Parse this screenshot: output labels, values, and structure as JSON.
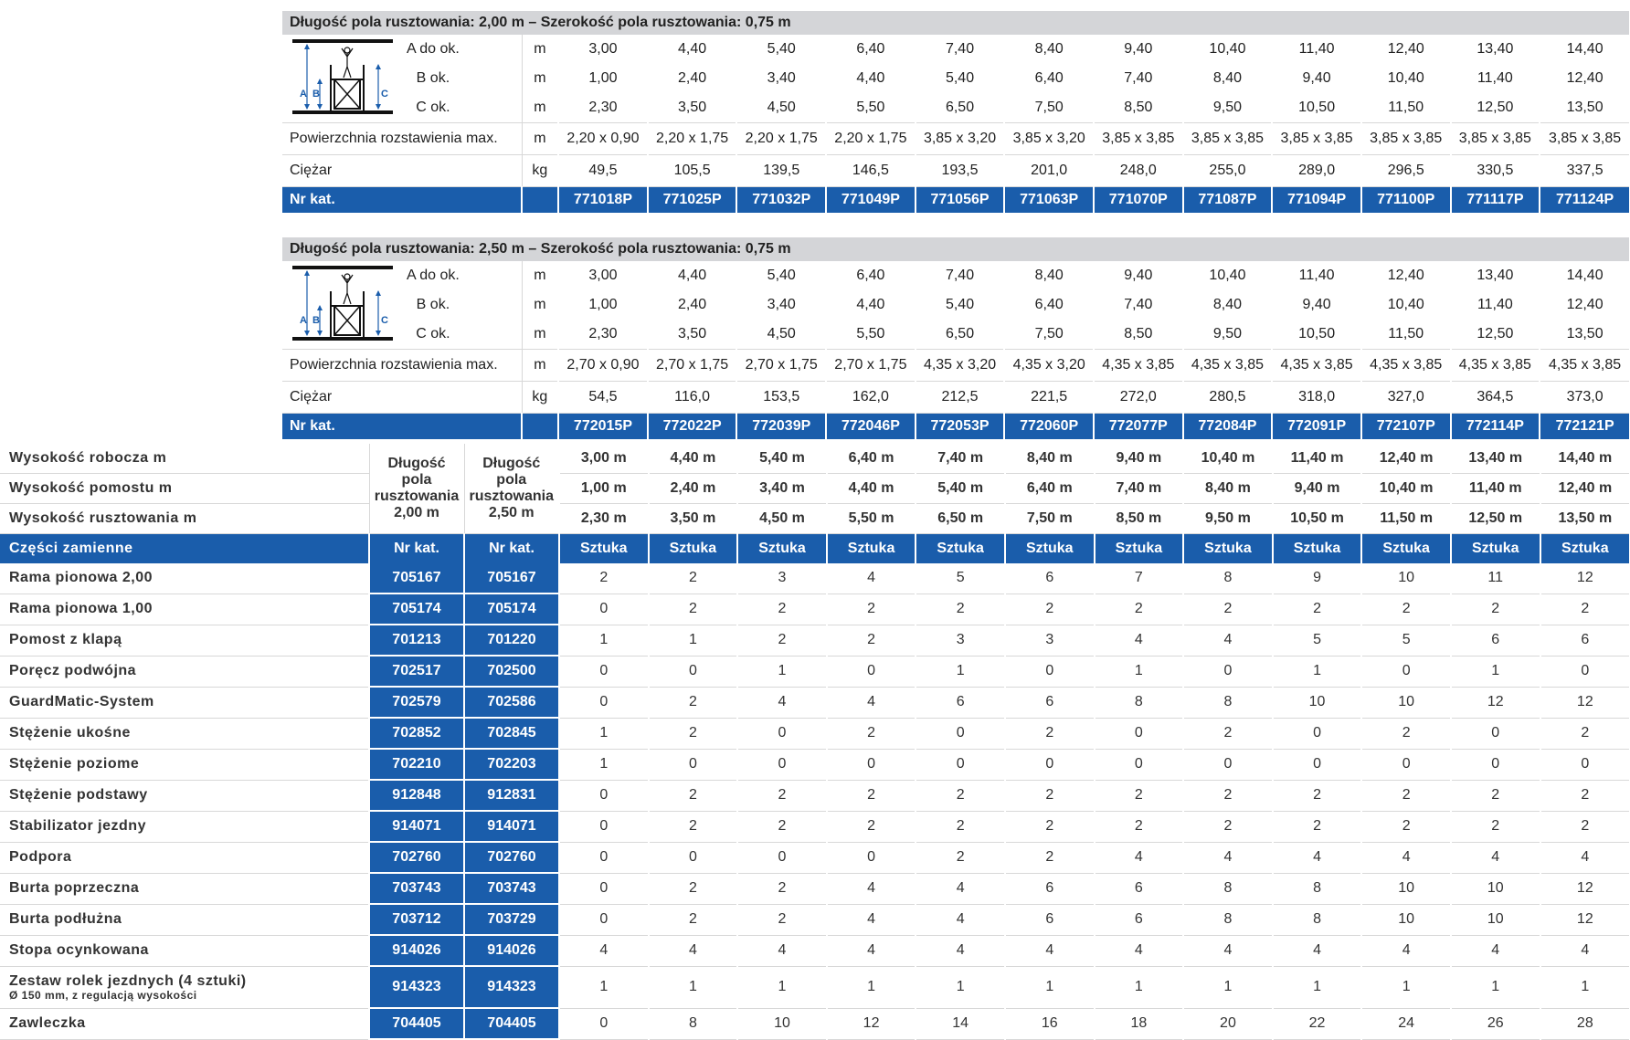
{
  "table1": {
    "header": "Długość pola rusztowania: 2,00 m – Szerokość pola rusztowania: 0,75 m",
    "dim_labels": [
      "A do ok.",
      "B ok.",
      "C ok."
    ],
    "unit_m": "m",
    "A": [
      "3,00",
      "4,40",
      "5,40",
      "6,40",
      "7,40",
      "8,40",
      "9,40",
      "10,40",
      "11,40",
      "12,40",
      "13,40",
      "14,40"
    ],
    "B": [
      "1,00",
      "2,40",
      "3,40",
      "4,40",
      "5,40",
      "6,40",
      "7,40",
      "8,40",
      "9,40",
      "10,40",
      "11,40",
      "12,40"
    ],
    "C": [
      "2,30",
      "3,50",
      "4,50",
      "5,50",
      "6,50",
      "7,50",
      "8,50",
      "9,50",
      "10,50",
      "11,50",
      "12,50",
      "13,50"
    ],
    "area_label": "Powierzchnia rozstawienia max.",
    "area": [
      "2,20 x 0,90",
      "2,20 x 1,75",
      "2,20 x 1,75",
      "2,20 x 1,75",
      "3,85 x 3,20",
      "3,85 x 3,20",
      "3,85 x 3,85",
      "3,85 x 3,85",
      "3,85 x 3,85",
      "3,85 x 3,85",
      "3,85 x 3,85",
      "3,85 x 3,85"
    ],
    "weight_label": "Ciężar",
    "weight_unit": "kg",
    "weight": [
      "49,5",
      "105,5",
      "139,5",
      "146,5",
      "193,5",
      "201,0",
      "248,0",
      "255,0",
      "289,0",
      "296,5",
      "330,5",
      "337,5"
    ],
    "cat_label": "Nr kat.",
    "cat": [
      "771018P",
      "771025P",
      "771032P",
      "771049P",
      "771056P",
      "771063P",
      "771070P",
      "771087P",
      "771094P",
      "771100P",
      "771117P",
      "771124P"
    ]
  },
  "table2": {
    "header": "Długość pola rusztowania: 2,50 m – Szerokość pola rusztowania: 0,75 m",
    "dim_labels": [
      "A do ok.",
      "B ok.",
      "C ok."
    ],
    "unit_m": "m",
    "A": [
      "3,00",
      "4,40",
      "5,40",
      "6,40",
      "7,40",
      "8,40",
      "9,40",
      "10,40",
      "11,40",
      "12,40",
      "13,40",
      "14,40"
    ],
    "B": [
      "1,00",
      "2,40",
      "3,40",
      "4,40",
      "5,40",
      "6,40",
      "7,40",
      "8,40",
      "9,40",
      "10,40",
      "11,40",
      "12,40"
    ],
    "C": [
      "2,30",
      "3,50",
      "4,50",
      "5,50",
      "6,50",
      "7,50",
      "8,50",
      "9,50",
      "10,50",
      "11,50",
      "12,50",
      "13,50"
    ],
    "area_label": "Powierzchnia rozstawienia max.",
    "area": [
      "2,70 x 0,90",
      "2,70 x 1,75",
      "2,70 x 1,75",
      "2,70 x 1,75",
      "4,35 x 3,20",
      "4,35 x 3,20",
      "4,35 x 3,85",
      "4,35 x 3,85",
      "4,35 x 3,85",
      "4,35 x 3,85",
      "4,35 x 3,85",
      "4,35 x 3,85"
    ],
    "weight_label": "Ciężar",
    "weight_unit": "kg",
    "weight": [
      "54,5",
      "116,0",
      "153,5",
      "162,0",
      "212,5",
      "221,5",
      "272,0",
      "280,5",
      "318,0",
      "327,0",
      "364,5",
      "373,0"
    ],
    "cat_label": "Nr kat.",
    "cat": [
      "772015P",
      "772022P",
      "772039P",
      "772046P",
      "772053P",
      "772060P",
      "772077P",
      "772084P",
      "772091P",
      "772107P",
      "772114P",
      "772121P"
    ]
  },
  "diagram_labels": {
    "a": "A",
    "b": "B",
    "c": "C"
  },
  "parts": {
    "height_rows": [
      {
        "label": "Wysokość robocza m",
        "values": [
          "3,00 m",
          "4,40 m",
          "5,40 m",
          "6,40 m",
          "7,40 m",
          "8,40 m",
          "9,40 m",
          "10,40 m",
          "11,40 m",
          "12,40 m",
          "13,40 m",
          "14,40 m"
        ]
      },
      {
        "label": "Wysokość pomostu m",
        "values": [
          "1,00 m",
          "2,40 m",
          "3,40 m",
          "4,40 m",
          "5,40 m",
          "6,40 m",
          "7,40 m",
          "8,40 m",
          "9,40 m",
          "10,40 m",
          "11,40 m",
          "12,40 m"
        ]
      },
      {
        "label": "Wysokość rusztowania m",
        "values": [
          "2,30 m",
          "3,50 m",
          "4,50 m",
          "5,50 m",
          "6,50 m",
          "7,50 m",
          "8,50 m",
          "9,50 m",
          "10,50 m",
          "11,50 m",
          "12,50 m",
          "13,50 m"
        ]
      }
    ],
    "dl_head_1": [
      "Długość",
      "pola",
      "rusztowania",
      "2,00 m"
    ],
    "dl_head_2": [
      "Długość",
      "pola",
      "rusztowania",
      "2,50 m"
    ],
    "head_label": "Części zamienne",
    "head_cat1": "Nr kat.",
    "head_cat2": "Nr kat.",
    "head_unit": "Sztuka",
    "rows": [
      {
        "name": "Rama pionowa 2,00",
        "c1": "705167",
        "c2": "705167",
        "q": [
          "2",
          "2",
          "3",
          "4",
          "5",
          "6",
          "7",
          "8",
          "9",
          "10",
          "11",
          "12"
        ]
      },
      {
        "name": "Rama pionowa 1,00",
        "c1": "705174",
        "c2": "705174",
        "q": [
          "0",
          "2",
          "2",
          "2",
          "2",
          "2",
          "2",
          "2",
          "2",
          "2",
          "2",
          "2"
        ]
      },
      {
        "name": "Pomost z klapą",
        "c1": "701213",
        "c2": "701220",
        "q": [
          "1",
          "1",
          "2",
          "2",
          "3",
          "3",
          "4",
          "4",
          "5",
          "5",
          "6",
          "6"
        ]
      },
      {
        "name": "Poręcz podwójna",
        "c1": "702517",
        "c2": "702500",
        "q": [
          "0",
          "0",
          "1",
          "0",
          "1",
          "0",
          "1",
          "0",
          "1",
          "0",
          "1",
          "0"
        ]
      },
      {
        "name": "GuardMatic-System",
        "c1": "702579",
        "c2": "702586",
        "q": [
          "0",
          "2",
          "4",
          "4",
          "6",
          "6",
          "8",
          "8",
          "10",
          "10",
          "12",
          "12"
        ]
      },
      {
        "name": "Stężenie ukośne",
        "c1": "702852",
        "c2": "702845",
        "q": [
          "1",
          "2",
          "0",
          "2",
          "0",
          "2",
          "0",
          "2",
          "0",
          "2",
          "0",
          "2"
        ]
      },
      {
        "name": "Stężenie poziome",
        "c1": "702210",
        "c2": "702203",
        "q": [
          "1",
          "0",
          "0",
          "0",
          "0",
          "0",
          "0",
          "0",
          "0",
          "0",
          "0",
          "0"
        ]
      },
      {
        "name": "Stężenie podstawy",
        "c1": "912848",
        "c2": "912831",
        "q": [
          "0",
          "2",
          "2",
          "2",
          "2",
          "2",
          "2",
          "2",
          "2",
          "2",
          "2",
          "2"
        ]
      },
      {
        "name": "Stabilizator jezdny",
        "c1": "914071",
        "c2": "914071",
        "q": [
          "0",
          "2",
          "2",
          "2",
          "2",
          "2",
          "2",
          "2",
          "2",
          "2",
          "2",
          "2"
        ]
      },
      {
        "name": "Podpora",
        "c1": "702760",
        "c2": "702760",
        "q": [
          "0",
          "0",
          "0",
          "0",
          "2",
          "2",
          "4",
          "4",
          "4",
          "4",
          "4",
          "4"
        ]
      },
      {
        "name": "Burta poprzeczna",
        "c1": "703743",
        "c2": "703743",
        "q": [
          "0",
          "2",
          "2",
          "4",
          "4",
          "6",
          "6",
          "8",
          "8",
          "10",
          "10",
          "12"
        ]
      },
      {
        "name": "Burta podłużna",
        "c1": "703712",
        "c2": "703729",
        "q": [
          "0",
          "2",
          "2",
          "4",
          "4",
          "6",
          "6",
          "8",
          "8",
          "10",
          "10",
          "12"
        ]
      },
      {
        "name": "Stopa ocynkowana",
        "c1": "914026",
        "c2": "914026",
        "q": [
          "4",
          "4",
          "4",
          "4",
          "4",
          "4",
          "4",
          "4",
          "4",
          "4",
          "4",
          "4"
        ]
      },
      {
        "name": "Zestaw rolek jezdnych (4 sztuki)",
        "sub": "Ø 150 mm, z regulacją wysokości",
        "c1": "914323",
        "c2": "914323",
        "q": [
          "1",
          "1",
          "1",
          "1",
          "1",
          "1",
          "1",
          "1",
          "1",
          "1",
          "1",
          "1"
        ]
      },
      {
        "name": "Zawleczka",
        "c1": "704405",
        "c2": "704405",
        "q": [
          "0",
          "8",
          "10",
          "12",
          "14",
          "16",
          "18",
          "20",
          "22",
          "24",
          "26",
          "28"
        ]
      }
    ]
  },
  "colors": {
    "accent_blue": "#1a5dab",
    "header_gray": "#d4d5d8"
  }
}
